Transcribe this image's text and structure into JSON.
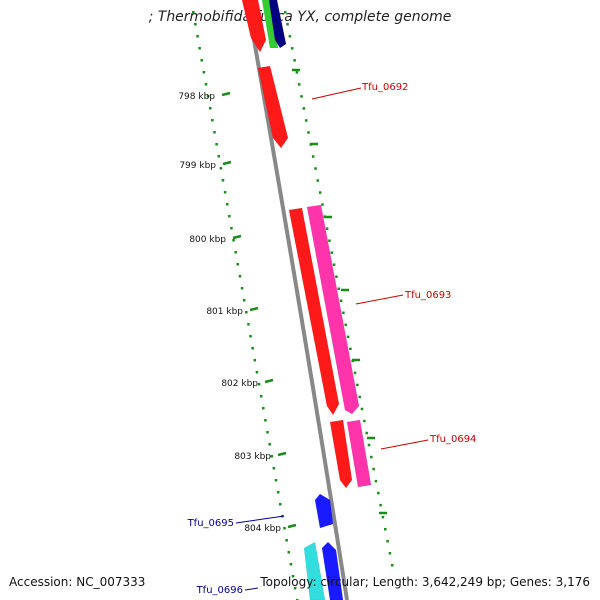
{
  "title": "; Thermobifida fusca YX, complete genome",
  "footer": {
    "accession": "Accession: NC_007333",
    "summary": "Topology: circular; Length: 3,642,249 bp; Genes: 3,176"
  },
  "colors": {
    "backbone": "#888888",
    "tick": "#1a8c1a",
    "red_gene": "#ff1a1a",
    "pink_gene": "#ff33aa",
    "blue_gene": "#1a1aff",
    "cyan_gene": "#33dddd",
    "navy_gene": "#000080",
    "green_gene": "#33cc33",
    "red_label": "#cc0000",
    "blue_label": "#000099"
  },
  "scale": {
    "unit": "kbp",
    "ticks": [
      "798 kbp",
      "799 kbp",
      "800 kbp",
      "801 kbp",
      "802 kbp",
      "803 kbp",
      "804 kbp"
    ]
  },
  "gene_labels": [
    {
      "text": "Tfu_0692",
      "color": "red"
    },
    {
      "text": "Tfu_0693",
      "color": "red"
    },
    {
      "text": "Tfu_0694",
      "color": "red"
    },
    {
      "text": "Tfu_0695",
      "color": "blue"
    },
    {
      "text": "Tfu_0696",
      "color": "blue"
    }
  ]
}
